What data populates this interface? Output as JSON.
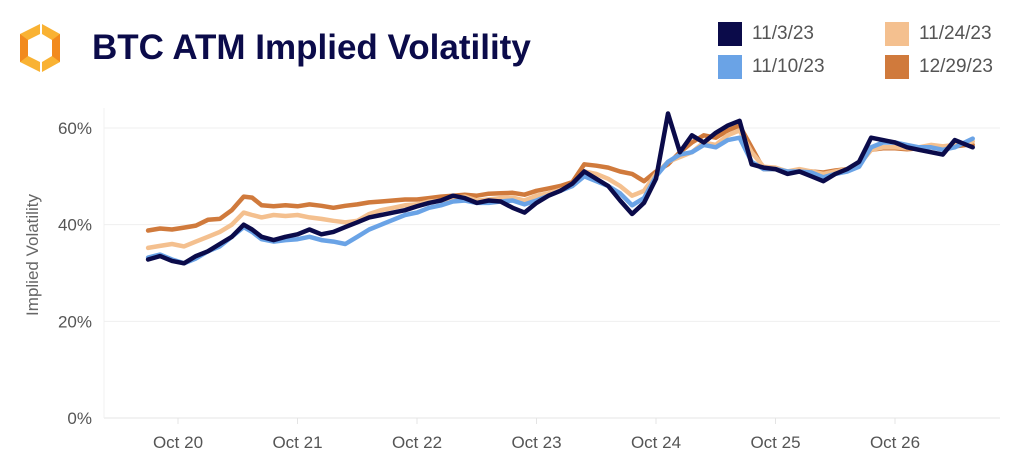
{
  "header": {
    "title": "BTC ATM Implied Volatility",
    "logo_icon": "hexagon-brackets-logo-icon"
  },
  "chart_data": {
    "type": "line",
    "title": "BTC ATM Implied Volatility",
    "xlabel": "",
    "ylabel": "Implied Volatility",
    "xlim": [
      19.6,
      26.8
    ],
    "ylim": [
      0,
      65
    ],
    "grid": true,
    "legend_position": "top-right",
    "x_ticks": [
      20,
      21,
      22,
      23,
      24,
      25,
      26
    ],
    "x_tick_labels": [
      "Oct 20",
      "Oct 21",
      "Oct 22",
      "Oct 23",
      "Oct 24",
      "Oct 25",
      "Oct 26"
    ],
    "y_ticks": [
      0,
      20,
      40,
      60
    ],
    "y_tick_labels": [
      "0%",
      "20%",
      "40%",
      "60%"
    ],
    "x_unit": "day of October",
    "series": [
      {
        "name": "12/29/23",
        "color": "#d07a3c",
        "x": [
          19.75,
          19.85,
          19.95,
          20.05,
          20.15,
          20.25,
          20.35,
          20.45,
          20.55,
          20.62,
          20.7,
          20.8,
          20.9,
          21.0,
          21.1,
          21.2,
          21.3,
          21.4,
          21.5,
          21.6,
          21.7,
          21.8,
          21.9,
          22.0,
          22.1,
          22.2,
          22.3,
          22.4,
          22.5,
          22.6,
          22.7,
          22.8,
          22.9,
          23.0,
          23.1,
          23.2,
          23.3,
          23.4,
          23.5,
          23.6,
          23.7,
          23.8,
          23.9,
          24.0,
          24.1,
          24.2,
          24.3,
          24.4,
          24.5,
          24.6,
          24.7,
          24.8,
          24.9,
          25.0,
          25.1,
          25.2,
          25.3,
          25.4,
          25.5,
          25.6,
          25.7,
          25.8,
          25.9,
          26.0,
          26.1,
          26.2,
          26.3,
          26.4,
          26.5,
          26.6,
          26.65
        ],
        "values": [
          38.8,
          39.2,
          39.0,
          39.4,
          39.8,
          41.0,
          41.2,
          43.0,
          45.8,
          45.6,
          44.0,
          43.8,
          44.0,
          43.8,
          44.2,
          43.9,
          43.5,
          43.9,
          44.2,
          44.6,
          44.8,
          45.0,
          45.2,
          45.2,
          45.5,
          45.8,
          46.0,
          46.2,
          46.0,
          46.4,
          46.5,
          46.6,
          46.2,
          47.0,
          47.5,
          48.0,
          48.8,
          52.5,
          52.2,
          51.8,
          51.0,
          50.5,
          49.0,
          51.0,
          52.5,
          55.0,
          57.0,
          58.5,
          58.0,
          59.5,
          60.5,
          56.0,
          51.5,
          51.5,
          51.0,
          51.2,
          51.0,
          50.8,
          51.2,
          51.5,
          52.5,
          55.5,
          55.8,
          55.8,
          55.6,
          55.8,
          56.0,
          55.8,
          56.2,
          56.5,
          56.5
        ]
      },
      {
        "name": "11/24/23",
        "color": "#f4c08f",
        "x": [
          19.75,
          19.85,
          19.95,
          20.05,
          20.15,
          20.25,
          20.35,
          20.45,
          20.55,
          20.62,
          20.7,
          20.8,
          20.9,
          21.0,
          21.1,
          21.2,
          21.3,
          21.4,
          21.5,
          21.6,
          21.7,
          21.8,
          21.9,
          22.0,
          22.1,
          22.2,
          22.3,
          22.4,
          22.5,
          22.6,
          22.7,
          22.8,
          22.9,
          23.0,
          23.1,
          23.2,
          23.3,
          23.4,
          23.5,
          23.6,
          23.7,
          23.8,
          23.9,
          24.0,
          24.1,
          24.2,
          24.3,
          24.4,
          24.5,
          24.6,
          24.7,
          24.8,
          24.9,
          25.0,
          25.1,
          25.2,
          25.3,
          25.4,
          25.5,
          25.6,
          25.7,
          25.8,
          25.9,
          26.0,
          26.1,
          26.2,
          26.3,
          26.4,
          26.5,
          26.6,
          26.65
        ],
        "values": [
          35.2,
          35.6,
          36.0,
          35.5,
          36.5,
          37.5,
          38.5,
          40.0,
          42.5,
          42.0,
          41.5,
          42.0,
          41.8,
          42.0,
          41.5,
          41.2,
          40.8,
          40.5,
          40.8,
          42.2,
          43.0,
          43.5,
          44.0,
          44.2,
          44.8,
          45.0,
          45.5,
          45.8,
          45.0,
          45.2,
          45.5,
          45.6,
          45.0,
          46.0,
          46.5,
          47.2,
          48.0,
          51.0,
          50.5,
          49.5,
          48.0,
          46.0,
          47.0,
          50.5,
          53.0,
          54.0,
          55.0,
          57.0,
          56.5,
          58.5,
          59.5,
          55.0,
          52.0,
          51.8,
          51.0,
          51.5,
          51.0,
          50.5,
          51.0,
          51.5,
          52.5,
          55.5,
          56.0,
          56.0,
          55.8,
          56.0,
          56.5,
          56.2,
          56.5,
          57.0,
          57.2
        ]
      },
      {
        "name": "11/10/23",
        "color": "#6aa3e6",
        "x": [
          19.75,
          19.85,
          19.95,
          20.05,
          20.15,
          20.25,
          20.35,
          20.45,
          20.55,
          20.62,
          20.7,
          20.8,
          20.9,
          21.0,
          21.1,
          21.2,
          21.3,
          21.4,
          21.5,
          21.6,
          21.7,
          21.8,
          21.9,
          22.0,
          22.1,
          22.2,
          22.3,
          22.4,
          22.5,
          22.6,
          22.7,
          22.8,
          22.9,
          23.0,
          23.1,
          23.2,
          23.3,
          23.4,
          23.5,
          23.6,
          23.7,
          23.8,
          23.9,
          24.0,
          24.1,
          24.2,
          24.3,
          24.4,
          24.5,
          24.6,
          24.7,
          24.8,
          24.9,
          25.0,
          25.1,
          25.2,
          25.3,
          25.4,
          25.5,
          25.6,
          25.7,
          25.8,
          25.9,
          26.0,
          26.1,
          26.2,
          26.3,
          26.4,
          26.5,
          26.6,
          26.65
        ],
        "values": [
          33.2,
          33.8,
          32.8,
          32.0,
          33.0,
          34.5,
          35.5,
          37.5,
          39.5,
          38.5,
          37.0,
          36.5,
          36.8,
          37.0,
          37.5,
          36.8,
          36.5,
          36.0,
          37.5,
          39.0,
          40.0,
          41.0,
          42.0,
          42.5,
          43.5,
          44.0,
          44.8,
          45.0,
          44.5,
          44.5,
          44.8,
          45.0,
          44.2,
          45.0,
          46.0,
          47.0,
          48.0,
          50.0,
          49.0,
          48.0,
          46.5,
          44.0,
          45.5,
          50.0,
          53.0,
          54.5,
          55.0,
          56.5,
          56.0,
          57.5,
          58.0,
          53.0,
          51.5,
          51.5,
          51.0,
          51.0,
          50.8,
          49.8,
          50.5,
          51.0,
          52.0,
          56.0,
          57.0,
          57.0,
          56.5,
          56.0,
          56.0,
          55.5,
          56.0,
          57.2,
          57.8
        ]
      },
      {
        "name": "11/3/23",
        "color": "#0b0b4a",
        "x": [
          19.75,
          19.85,
          19.95,
          20.05,
          20.15,
          20.25,
          20.35,
          20.45,
          20.55,
          20.62,
          20.7,
          20.8,
          20.9,
          21.0,
          21.1,
          21.2,
          21.3,
          21.4,
          21.5,
          21.6,
          21.7,
          21.8,
          21.9,
          22.0,
          22.1,
          22.2,
          22.3,
          22.4,
          22.5,
          22.6,
          22.7,
          22.8,
          22.9,
          23.0,
          23.1,
          23.2,
          23.3,
          23.4,
          23.5,
          23.6,
          23.7,
          23.8,
          23.9,
          24.0,
          24.1,
          24.2,
          24.3,
          24.4,
          24.5,
          24.6,
          24.7,
          24.8,
          24.9,
          25.0,
          25.1,
          25.2,
          25.3,
          25.4,
          25.5,
          25.6,
          25.7,
          25.8,
          25.9,
          26.0,
          26.1,
          26.2,
          26.3,
          26.4,
          26.5,
          26.6,
          26.65
        ],
        "values": [
          32.8,
          33.5,
          32.5,
          32.0,
          33.5,
          34.5,
          36.0,
          37.5,
          40.0,
          39.0,
          37.5,
          36.8,
          37.5,
          38.0,
          39.0,
          38.0,
          38.5,
          39.5,
          40.5,
          41.5,
          42.0,
          42.5,
          43.0,
          43.8,
          44.5,
          45.0,
          46.0,
          45.5,
          44.5,
          45.0,
          44.8,
          43.5,
          42.5,
          44.5,
          46.0,
          47.0,
          48.5,
          51.0,
          49.5,
          48.0,
          45.0,
          42.2,
          44.5,
          49.5,
          63.0,
          55.0,
          58.5,
          57.0,
          59.0,
          60.5,
          61.5,
          52.5,
          51.8,
          51.5,
          50.5,
          51.0,
          50.0,
          49.0,
          50.5,
          51.5,
          53.0,
          58.0,
          57.5,
          57.0,
          56.0,
          55.5,
          55.0,
          54.5,
          57.5,
          56.5,
          56.0
        ]
      }
    ]
  },
  "legend": {
    "items": [
      {
        "label": "11/3/23",
        "color": "#0b0b4a"
      },
      {
        "label": "11/10/23",
        "color": "#6aa3e6"
      },
      {
        "label": "11/24/23",
        "color": "#f4c08f"
      },
      {
        "label": "12/29/23",
        "color": "#d07a3c"
      }
    ]
  }
}
